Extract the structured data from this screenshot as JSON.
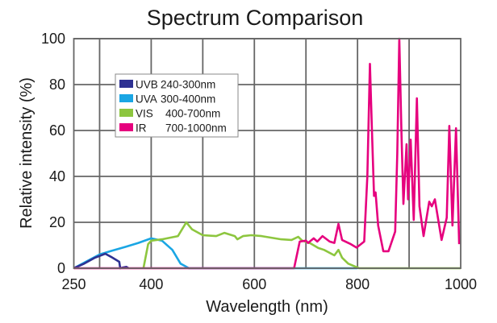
{
  "chart_data": {
    "type": "line",
    "title": "Spectrum Comparison",
    "xlabel": "Wavelength (nm)",
    "ylabel": "Relative intensity (%)",
    "xlim": [
      250,
      1000
    ],
    "ylim": [
      0,
      100
    ],
    "xticks": [
      250,
      400,
      600,
      800,
      1000
    ],
    "xgrid": [
      300,
      400,
      500,
      600,
      700,
      800,
      900
    ],
    "yticks": [
      0,
      20,
      40,
      60,
      80,
      100
    ],
    "grid": true,
    "legend_position": "upper-left",
    "series": [
      {
        "name": "UVB 240-300nm",
        "legend_name": "UVB",
        "legend_range": "240-300nm",
        "color": "#2e3192",
        "points": [
          [
            250,
            0
          ],
          [
            270,
            2
          ],
          [
            290,
            4.5
          ],
          [
            311,
            6.3
          ],
          [
            322,
            5
          ],
          [
            338,
            2.8
          ],
          [
            340,
            0
          ],
          [
            345,
            0.3
          ],
          [
            352,
            0.6
          ],
          [
            356,
            0
          ]
        ]
      },
      {
        "name": "UVA 300-400nm",
        "legend_name": "UVA",
        "legend_range": "300-400nm",
        "color": "#1aa6e4",
        "points": [
          [
            250,
            0
          ],
          [
            275,
            3
          ],
          [
            300,
            6
          ],
          [
            322,
            7.5
          ],
          [
            350,
            9.3
          ],
          [
            375,
            11
          ],
          [
            400,
            13
          ],
          [
            421,
            12
          ],
          [
            441,
            8
          ],
          [
            457,
            2
          ],
          [
            465,
            1
          ],
          [
            473,
            0
          ],
          [
            690,
            0
          ],
          [
            800,
            0
          ]
        ]
      },
      {
        "name": "VIS 400-700nm",
        "legend_name": "VIS",
        "legend_range": "400-700nm",
        "color": "#8dc63f",
        "points": [
          [
            385,
            0
          ],
          [
            394,
            10.5
          ],
          [
            400,
            12
          ],
          [
            421,
            12.6
          ],
          [
            452,
            14
          ],
          [
            468,
            20
          ],
          [
            479,
            17
          ],
          [
            500,
            14.4
          ],
          [
            526,
            14
          ],
          [
            542,
            15.4
          ],
          [
            562,
            14
          ],
          [
            567,
            12.6
          ],
          [
            578,
            14
          ],
          [
            594,
            14.4
          ],
          [
            614,
            14
          ],
          [
            652,
            12.6
          ],
          [
            672,
            12.3
          ],
          [
            685,
            13.7
          ],
          [
            693,
            12
          ],
          [
            708,
            10.9
          ],
          [
            724,
            8.8
          ],
          [
            735,
            8
          ],
          [
            755,
            5.6
          ],
          [
            763,
            8
          ],
          [
            770,
            4.6
          ],
          [
            782,
            2
          ],
          [
            803,
            0
          ],
          [
            1000,
            0
          ]
        ]
      },
      {
        "name": "IR 700-1000nm",
        "legend_name": "IR",
        "legend_range": "700-1000nm",
        "color": "#e6007e",
        "points": [
          [
            250,
            0
          ],
          [
            677,
            0
          ],
          [
            688,
            11.6
          ],
          [
            700,
            12
          ],
          [
            704,
            11
          ],
          [
            715,
            13
          ],
          [
            722,
            11.6
          ],
          [
            732,
            14
          ],
          [
            746,
            11.6
          ],
          [
            755,
            11
          ],
          [
            763,
            19.3
          ],
          [
            770,
            12.3
          ],
          [
            782,
            11
          ],
          [
            787,
            10.5
          ],
          [
            798,
            9
          ],
          [
            813,
            11.6
          ],
          [
            819,
            40
          ],
          [
            824,
            89
          ],
          [
            828,
            60
          ],
          [
            832,
            31.5
          ],
          [
            835,
            33
          ],
          [
            840,
            18.6
          ],
          [
            850,
            7.4
          ],
          [
            860,
            7.4
          ],
          [
            873,
            16
          ],
          [
            877,
            50
          ],
          [
            881,
            100
          ],
          [
            885,
            60
          ],
          [
            889,
            28
          ],
          [
            895,
            54
          ],
          [
            898,
            30
          ],
          [
            903,
            56
          ],
          [
            909,
            21
          ],
          [
            915,
            74
          ],
          [
            920,
            27
          ],
          [
            928,
            14
          ],
          [
            939,
            29
          ],
          [
            944,
            27
          ],
          [
            950,
            30
          ],
          [
            963,
            12.3
          ],
          [
            973,
            22
          ],
          [
            978,
            62
          ],
          [
            984,
            18.6
          ],
          [
            991,
            61
          ],
          [
            997,
            10.5
          ]
        ]
      }
    ]
  }
}
